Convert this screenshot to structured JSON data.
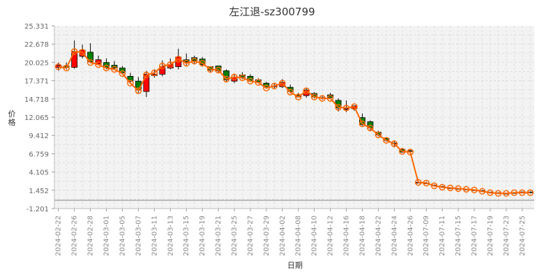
{
  "chart_data": {
    "type": "candlestick",
    "title": "左江退-sz300799",
    "xlabel": "日期",
    "ylabel": "价格",
    "ylim": [
      -1.201,
      25.331
    ],
    "y_ticks": [
      "25.331",
      "22.678",
      "20.025",
      "17.371",
      "14.718",
      "12.065",
      "9.412",
      "6.759",
      "4.105",
      "1.452",
      "-1.201"
    ],
    "x_tick_labels": [
      "2024-02-22",
      "2024-02-26",
      "2024-02-28",
      "2024-03-01",
      "2024-03-05",
      "2024-03-07",
      "2024-03-11",
      "2024-03-13",
      "2024-03-15",
      "2024-03-19",
      "2024-03-21",
      "2024-03-25",
      "2024-03-27",
      "2024-03-29",
      "2024-04-02",
      "2024-04-08",
      "2024-04-10",
      "2024-04-12",
      "2024-04-16",
      "2024-04-18",
      "2024-04-22",
      "2024-04-24",
      "2024-04-26",
      "2024-07-09",
      "2024-07-11",
      "2024-07-15",
      "2024-07-17",
      "2024-07-19",
      "2024-07-23",
      "2024-07-25"
    ],
    "series": [
      {
        "type": "candlestick",
        "values": [
          [
            19.3,
            19.6,
            18.8,
            20.0
          ],
          [
            19.5,
            19.3,
            19.0,
            20.0
          ],
          [
            19.3,
            21.6,
            19.1,
            23.2
          ],
          [
            20.9,
            21.8,
            20.6,
            22.6
          ],
          [
            21.5,
            20.1,
            19.9,
            22.8
          ],
          [
            19.8,
            20.4,
            19.6,
            21.0
          ],
          [
            20.0,
            19.3,
            19.0,
            20.6
          ],
          [
            19.6,
            19.2,
            18.9,
            20.2
          ],
          [
            19.2,
            18.5,
            18.3,
            19.5
          ],
          [
            18.0,
            17.3,
            17.0,
            18.5
          ],
          [
            17.3,
            16.0,
            15.6,
            17.9
          ],
          [
            15.8,
            18.3,
            15.0,
            18.8
          ],
          [
            18.1,
            18.3,
            17.8,
            19.0
          ],
          [
            18.3,
            19.4,
            18.0,
            20.3
          ],
          [
            19.2,
            19.7,
            19.0,
            20.6
          ],
          [
            19.4,
            20.8,
            19.0,
            22.0
          ],
          [
            20.4,
            20.1,
            19.6,
            21.3
          ],
          [
            20.7,
            20.3,
            19.8,
            21.0
          ],
          [
            20.5,
            19.7,
            19.4,
            20.8
          ],
          [
            19.4,
            18.9,
            18.6,
            19.4
          ],
          [
            19.5,
            18.8,
            18.6,
            19.5
          ],
          [
            18.8,
            17.5,
            17.3,
            19.0
          ],
          [
            17.3,
            17.9,
            17.0,
            18.4
          ],
          [
            18.2,
            17.9,
            17.6,
            18.6
          ],
          [
            18.0,
            17.3,
            17.2,
            18.3
          ],
          [
            17.5,
            17.2,
            17.0,
            17.7
          ],
          [
            17.0,
            16.4,
            16.2,
            17.2
          ],
          [
            16.6,
            16.6,
            16.3,
            17.0
          ],
          [
            16.5,
            17.1,
            16.3,
            17.6
          ],
          [
            16.4,
            15.8,
            15.5,
            16.8
          ],
          [
            15.3,
            15.0,
            14.9,
            15.6
          ],
          [
            15.2,
            16.0,
            14.9,
            16.3
          ],
          [
            15.5,
            15.0,
            14.8,
            15.7
          ],
          [
            14.9,
            14.8,
            14.6,
            15.1
          ],
          [
            15.3,
            14.9,
            14.7,
            15.6
          ],
          [
            14.5,
            13.4,
            12.9,
            14.8
          ],
          [
            13.2,
            13.3,
            12.8,
            14.5
          ],
          [
            13.3,
            13.7,
            13.0,
            13.8
          ],
          [
            12.0,
            11.0,
            10.8,
            12.6
          ],
          [
            11.4,
            10.5,
            10.1,
            11.6
          ],
          [
            9.9,
            9.5,
            9.3,
            10.1
          ],
          [
            9.0,
            8.7,
            8.5,
            9.1
          ],
          [
            8.2,
            8.3,
            7.7,
            8.7
          ],
          [
            7.4,
            7.0,
            6.9,
            7.6
          ],
          [
            7.2,
            7.1,
            6.9,
            7.3
          ],
          [
            2.6,
            2.6,
            2.5,
            2.8
          ],
          [
            2.5,
            2.5,
            2.4,
            2.7
          ],
          [
            2.2,
            2.1,
            2.0,
            2.3
          ],
          [
            2.0,
            1.9,
            1.8,
            2.1
          ],
          [
            1.8,
            1.8,
            1.7,
            1.9
          ],
          [
            1.7,
            1.7,
            1.6,
            1.8
          ],
          [
            1.6,
            1.6,
            1.5,
            1.7
          ],
          [
            1.5,
            1.5,
            1.4,
            1.6
          ],
          [
            1.4,
            1.3,
            1.2,
            1.5
          ],
          [
            1.2,
            1.1,
            1.0,
            1.2
          ],
          [
            1.1,
            1.0,
            0.9,
            1.1
          ],
          [
            1.0,
            1.0,
            0.9,
            1.1
          ],
          [
            1.1,
            1.1,
            1.0,
            1.2
          ],
          [
            1.2,
            1.2,
            1.1,
            1.3
          ],
          [
            1.2,
            1.1,
            1.0,
            1.3
          ]
        ]
      },
      {
        "type": "line",
        "values": [
          19.4,
          19.2,
          21.6,
          21.5,
          20.0,
          19.7,
          19.2,
          19.0,
          18.4,
          17.0,
          15.9,
          18.2,
          18.5,
          19.5,
          19.7,
          20.5,
          19.9,
          20.2,
          19.9,
          19.0,
          18.9,
          17.6,
          17.9,
          17.8,
          17.3,
          17.1,
          16.3,
          16.6,
          17.0,
          15.7,
          15.0,
          15.9,
          15.0,
          14.8,
          14.8,
          13.5,
          13.4,
          13.6,
          11.1,
          10.5,
          9.5,
          8.7,
          8.2,
          7.1,
          7.0,
          2.6,
          2.5,
          2.1,
          1.9,
          1.8,
          1.7,
          1.6,
          1.5,
          1.3,
          1.1,
          1.0,
          1.0,
          1.1,
          1.1,
          1.1
        ]
      }
    ],
    "colors": {
      "up": "#ff0000",
      "down": "#008000",
      "line": "#ff6600",
      "background": "#f3f3f3",
      "grid": "#dddddd",
      "zero": "#888888"
    }
  }
}
